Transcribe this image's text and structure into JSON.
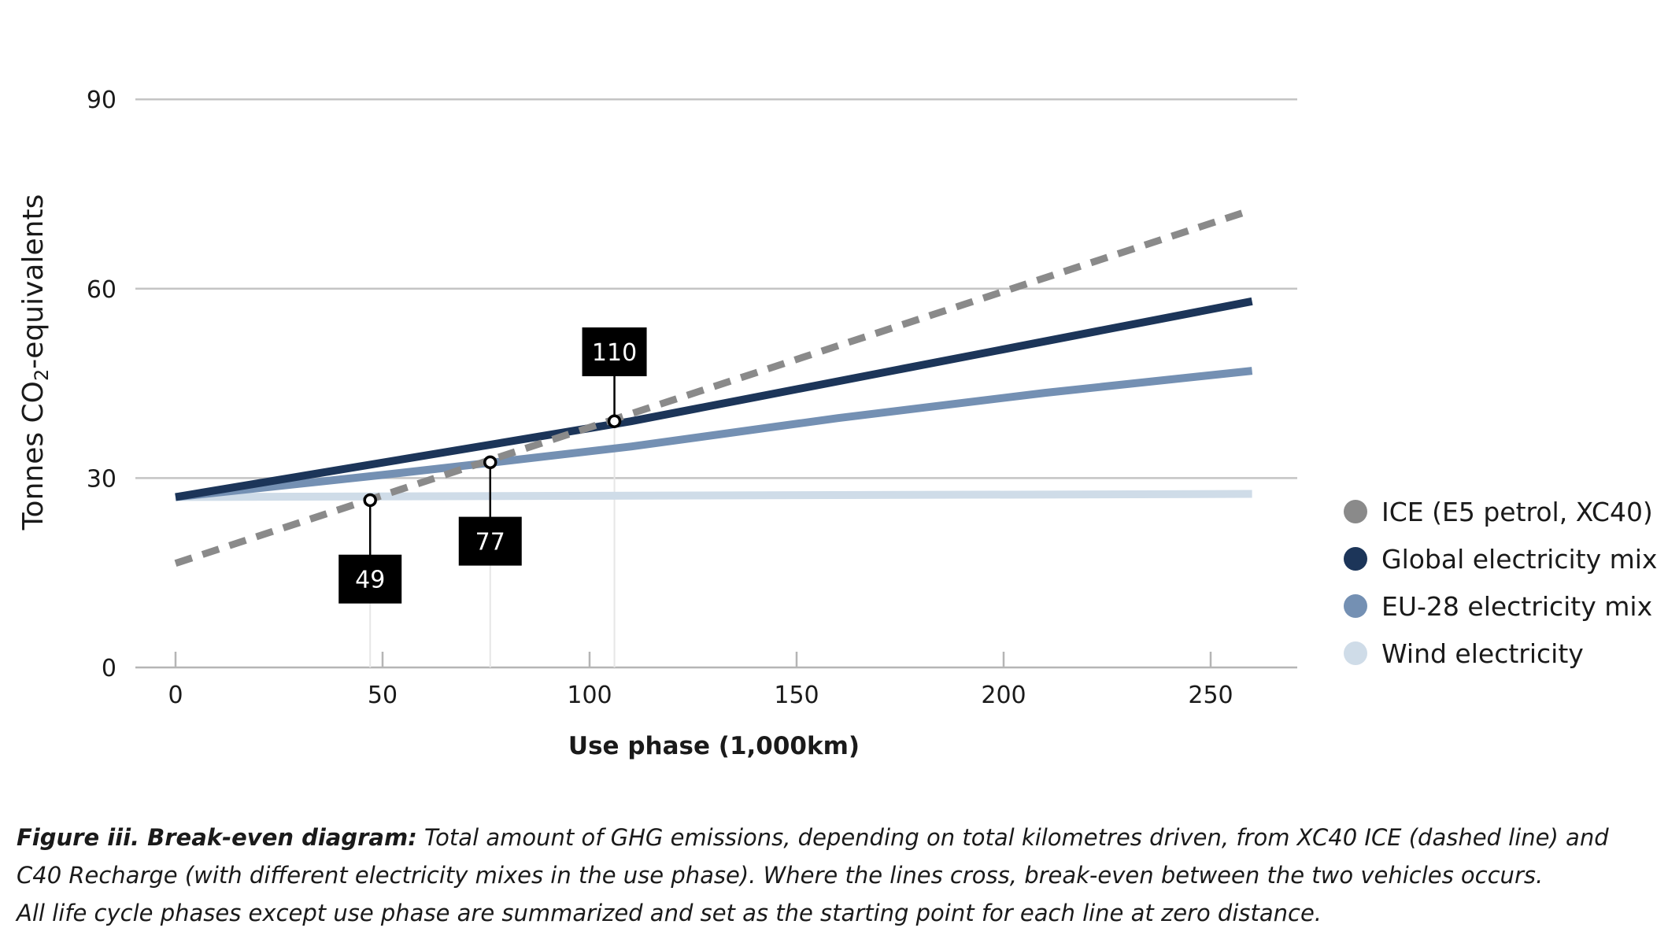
{
  "chart_data": {
    "type": "line",
    "xlabel": "Use phase (1,000km)",
    "ylabel_prefix": "Tonnes CO",
    "ylabel_sub": "2",
    "ylabel_suffix": "-equivalents",
    "xlim": [
      0,
      270
    ],
    "ylim": [
      0,
      90
    ],
    "xticks": [
      0,
      50,
      100,
      150,
      200,
      250
    ],
    "yticks": [
      0,
      30,
      60,
      90
    ],
    "grid": true,
    "legend_position": "right",
    "series": [
      {
        "name": "Wind electricity",
        "color": "#cfdce8",
        "dashed": false,
        "x": [
          0,
          260
        ],
        "y": [
          27,
          27.5
        ]
      },
      {
        "name": "EU-28 electricity mix",
        "color": "#7490b3",
        "dashed": false,
        "x": [
          0,
          50,
          77,
          110,
          160,
          210,
          260
        ],
        "y": [
          27,
          30.5,
          32.5,
          35,
          39.5,
          43.5,
          47
        ]
      },
      {
        "name": "Global electricity mix",
        "color": "#1c3559",
        "dashed": false,
        "x": [
          0,
          110,
          260
        ],
        "y": [
          27,
          39,
          58
        ]
      },
      {
        "name": "ICE (E5 petrol, XC40)",
        "color": "#8a8a8a",
        "dashed": true,
        "x": [
          0,
          260
        ],
        "y": [
          16.5,
          72.5
        ]
      }
    ],
    "annotations": [
      {
        "label": "49",
        "x": 47,
        "y": 26.5,
        "box_y": 14
      },
      {
        "label": "77",
        "x": 76,
        "y": 32.5,
        "box_y": 20
      },
      {
        "label": "110",
        "x": 106,
        "y": 39,
        "box_y": 50
      }
    ]
  },
  "legend": {
    "items": [
      {
        "label": "ICE (E5 petrol, XC40)",
        "color": "#8a8a8a"
      },
      {
        "label": "Global electricity mix",
        "color": "#1c3559"
      },
      {
        "label": "EU-28 electricity mix",
        "color": "#7490b3"
      },
      {
        "label": "Wind electricity",
        "color": "#cfdce8"
      }
    ]
  },
  "caption": {
    "bold": "Figure iii. Break-even diagram:",
    "line1": " Total amount of GHG emissions, depending on total kilometres driven, from XC40 ICE (dashed line) and",
    "line2": "C40 Recharge (with different electricity mixes in the use phase). Where the lines cross, break-even between the two vehicles occurs.",
    "line3": "All life cycle phases except use phase are summarized and set as the starting point for each line at zero distance."
  }
}
